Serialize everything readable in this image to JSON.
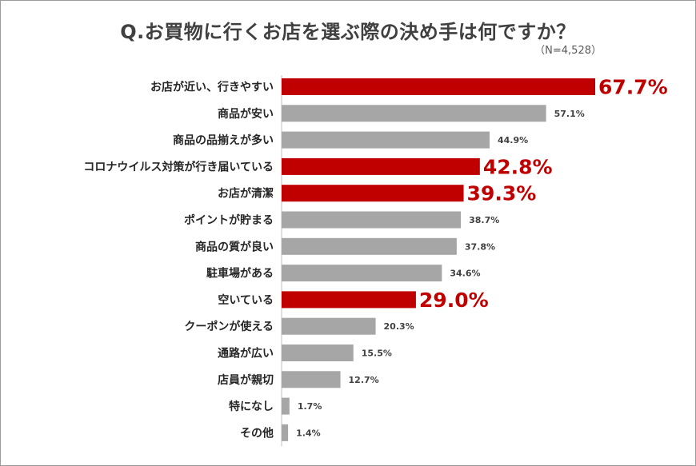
{
  "title": "Q.お買物に行くお店を選ぶ際の決め手は何ですか？",
  "sample_note": "（N=4,528）",
  "colors": {
    "highlight": "#c00000",
    "normal": "#a6a6a6",
    "label_text": "#262626",
    "value_text": "#404040"
  },
  "chart_data": {
    "type": "bar",
    "orientation": "horizontal",
    "title": "Q.お買物に行くお店を選ぶ際の決め手は何ですか？",
    "categories": [
      "お店が近い、行きやすい",
      "商品が安い",
      "商品の品揃えが多い",
      "コロナウイルス対策が行き届いている",
      "お店が清潔",
      "ポイントが貯まる",
      "商品の質が良い",
      "駐車場がある",
      "空いている",
      "クーポンが使える",
      "通路が広い",
      "店員が親切",
      "特になし",
      "その他"
    ],
    "values": [
      67.7,
      57.1,
      44.9,
      42.8,
      39.3,
      38.7,
      37.8,
      34.6,
      29.0,
      20.3,
      15.5,
      12.7,
      1.7,
      1.4
    ],
    "value_labels": [
      "67.7%",
      "57.1%",
      "44.9%",
      "42.8%",
      "39.3%",
      "38.7%",
      "37.8%",
      "34.6%",
      "29.0%",
      "20.3%",
      "15.5%",
      "12.7%",
      "1.7%",
      "1.4%"
    ],
    "highlighted": [
      true,
      false,
      false,
      true,
      true,
      false,
      false,
      false,
      true,
      false,
      false,
      false,
      false,
      false
    ],
    "xlim": [
      0,
      67.7
    ],
    "grid": false,
    "legend": "none"
  }
}
